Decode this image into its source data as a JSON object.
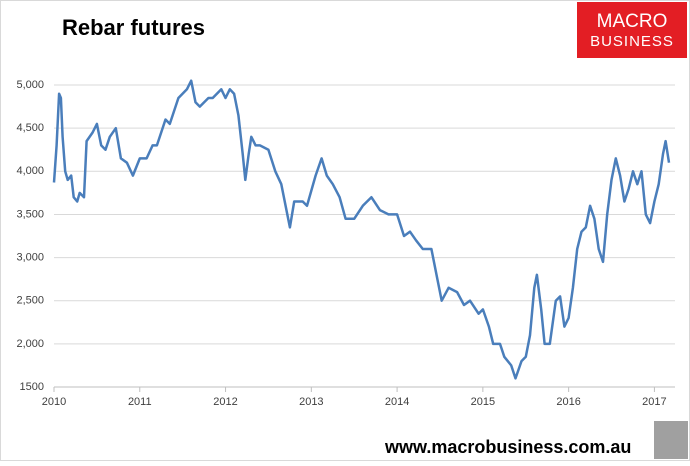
{
  "chart_data": {
    "type": "line",
    "title": "Rebar futures",
    "brand_top": "MACRO",
    "brand_bottom": "BUSINESS",
    "source": "www.macrobusiness.com.au",
    "xlim": [
      2010,
      2017.24
    ],
    "xticks": [
      2010,
      2011,
      2012,
      2013,
      2014,
      2015,
      2016,
      2017
    ],
    "ylim": [
      1500,
      5100
    ],
    "yticks": [
      1500,
      {
        "value": 2000,
        "label": "2,000"
      },
      {
        "value": 2500,
        "label": "2,500"
      },
      {
        "value": 3000,
        "label": "3,000"
      },
      {
        "value": 3500,
        "label": "3,500"
      },
      {
        "value": 4000,
        "label": "4,000"
      },
      {
        "value": 4500,
        "label": "4,500"
      },
      {
        "value": 5000,
        "label": "5,000"
      }
    ],
    "grid": true,
    "color": "#4a7ebb",
    "x": [
      2010.0,
      2010.03,
      2010.06,
      2010.08,
      2010.1,
      2010.13,
      2010.16,
      2010.2,
      2010.23,
      2010.27,
      2010.3,
      2010.35,
      2010.38,
      2010.45,
      2010.5,
      2010.55,
      2010.6,
      2010.65,
      2010.72,
      2010.78,
      2010.85,
      2010.92,
      2011.0,
      2011.08,
      2011.15,
      2011.2,
      2011.3,
      2011.35,
      2011.45,
      2011.55,
      2011.6,
      2011.65,
      2011.7,
      2011.8,
      2011.85,
      2011.95,
      2012.0,
      2012.05,
      2012.1,
      2012.15,
      2012.2,
      2012.23,
      2012.27,
      2012.3,
      2012.35,
      2012.4,
      2012.5,
      2012.58,
      2012.65,
      2012.72,
      2012.75,
      2012.8,
      2012.9,
      2012.95,
      2013.05,
      2013.12,
      2013.18,
      2013.25,
      2013.33,
      2013.4,
      2013.5,
      2013.6,
      2013.7,
      2013.8,
      2013.9,
      2014.0,
      2014.08,
      2014.15,
      2014.22,
      2014.3,
      2014.4,
      2014.47,
      2014.52,
      2014.6,
      2014.7,
      2014.78,
      2014.85,
      2014.95,
      2015.0,
      2015.07,
      2015.12,
      2015.2,
      2015.25,
      2015.33,
      2015.38,
      2015.45,
      2015.5,
      2015.55,
      2015.6,
      2015.63,
      2015.68,
      2015.72,
      2015.78,
      2015.85,
      2015.9,
      2015.95,
      2016.0,
      2016.05,
      2016.1,
      2016.15,
      2016.2,
      2016.25,
      2016.3,
      2016.35,
      2016.4,
      2016.45,
      2016.5,
      2016.55,
      2016.6,
      2016.65,
      2016.7,
      2016.75,
      2016.8,
      2016.85,
      2016.9,
      2016.95,
      2017.0,
      2017.05,
      2017.1,
      2017.13,
      2017.17
    ],
    "values": [
      3870,
      4300,
      4900,
      4850,
      4400,
      4000,
      3900,
      3950,
      3700,
      3650,
      3750,
      3700,
      4350,
      4450,
      4550,
      4300,
      4250,
      4400,
      4500,
      4150,
      4100,
      3950,
      4150,
      4150,
      4300,
      4300,
      4600,
      4550,
      4850,
      4950,
      5050,
      4800,
      4750,
      4850,
      4850,
      4950,
      4850,
      4950,
      4900,
      4650,
      4200,
      3900,
      4200,
      4400,
      4300,
      4300,
      4250,
      4000,
      3850,
      3500,
      3350,
      3650,
      3650,
      3600,
      3950,
      4150,
      3950,
      3850,
      3700,
      3450,
      3450,
      3600,
      3700,
      3550,
      3500,
      3500,
      3250,
      3300,
      3200,
      3100,
      3100,
      2750,
      2500,
      2650,
      2600,
      2450,
      2500,
      2350,
      2400,
      2200,
      2000,
      2000,
      1850,
      1750,
      1600,
      1800,
      1850,
      2100,
      2650,
      2800,
      2400,
      2000,
      2000,
      2500,
      2550,
      2200,
      2300,
      2650,
      3100,
      3300,
      3350,
      3600,
      3450,
      3100,
      2950,
      3500,
      3900,
      4150,
      3950,
      3650,
      3800,
      4000,
      3850,
      4000,
      3500,
      3400,
      3650,
      3850,
      4200,
      4350,
      4100
    ]
  }
}
